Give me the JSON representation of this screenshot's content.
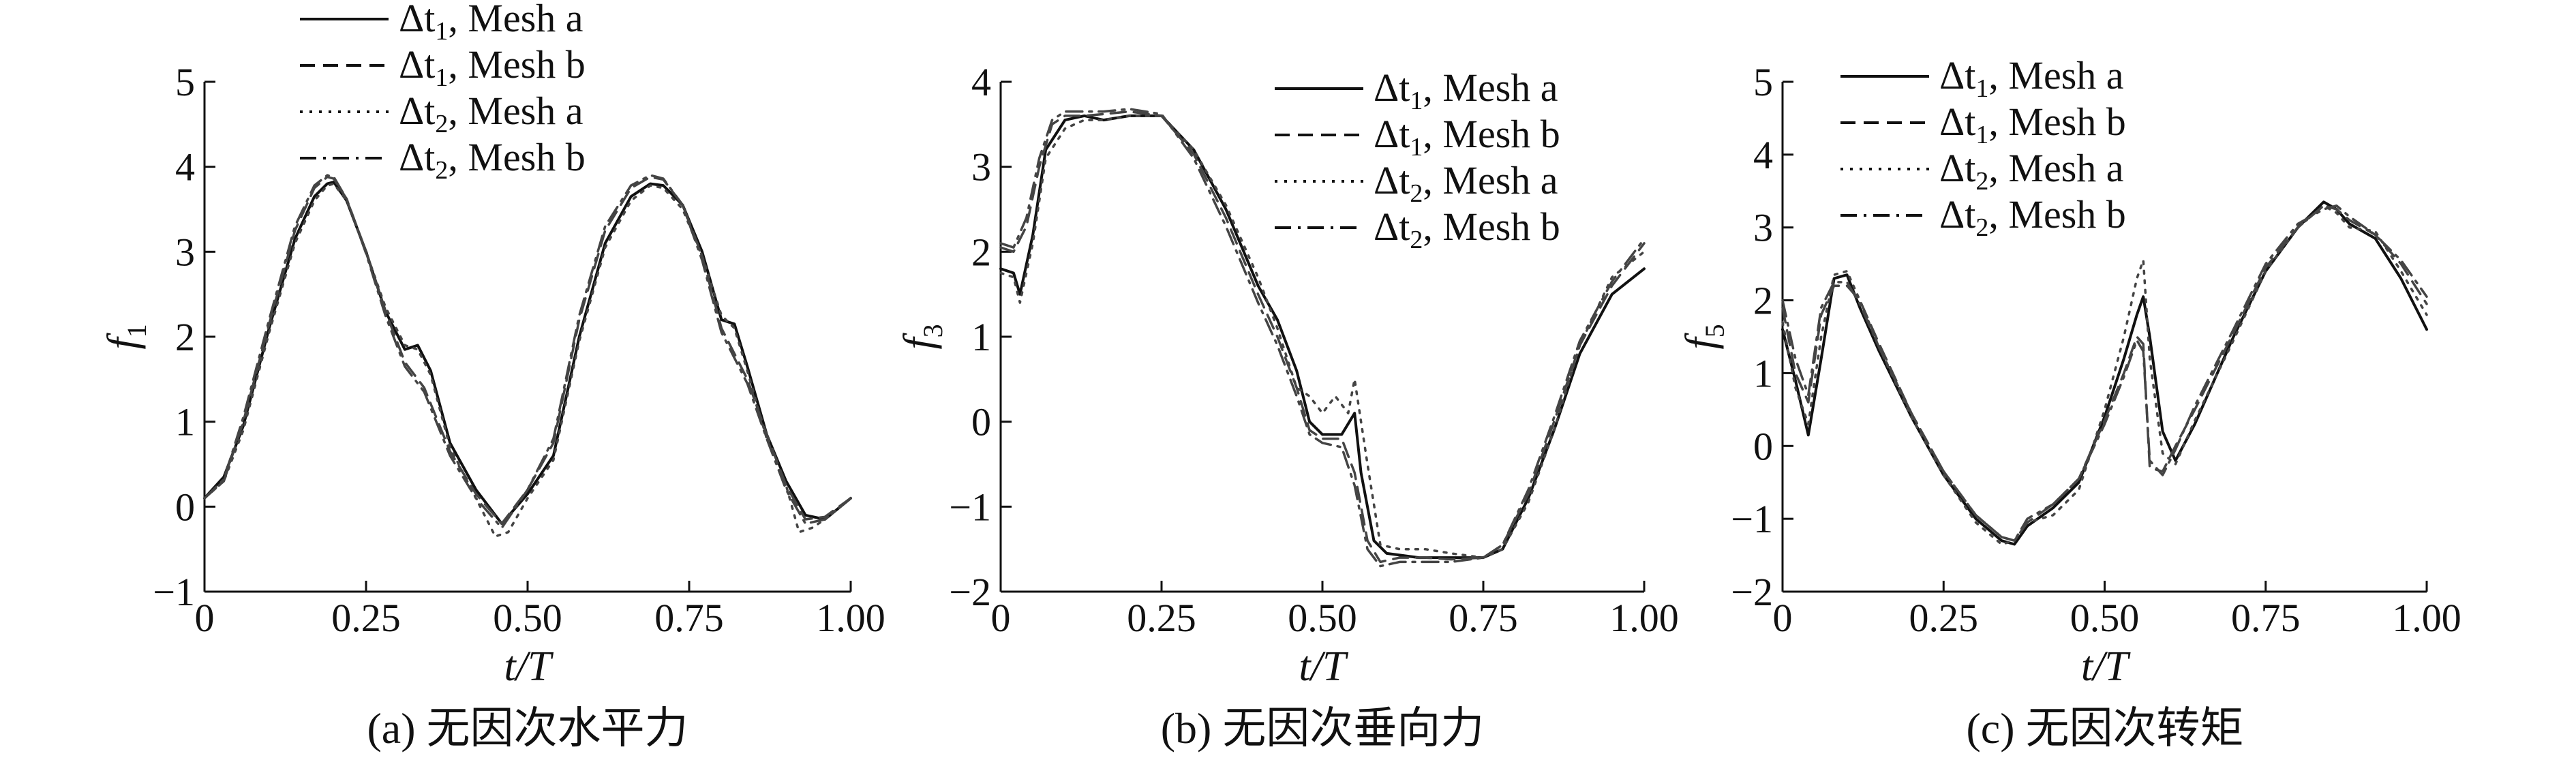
{
  "chart_data": [
    {
      "type": "line",
      "caption": "(a) 无因次水平力",
      "xlabel": "t/T",
      "ylabel": "f",
      "ylabel_sub": "1",
      "xlim": [
        0,
        1
      ],
      "ylim": [
        -1,
        5
      ],
      "xticks": [
        0,
        0.25,
        0.5,
        0.75,
        1.0
      ],
      "xtick_labels": [
        "0",
        "0.25",
        "0.50",
        "0.75",
        "1.00"
      ],
      "yticks": [
        -1,
        0,
        1,
        2,
        3,
        4,
        5
      ],
      "ytick_labels": [
        "−1",
        "0",
        "1",
        "2",
        "3",
        "4",
        "5"
      ],
      "legend_position": "top-left",
      "series": [
        {
          "name": "Δt₁, Mesh a",
          "legend_main": "Δt",
          "legend_sub": "1",
          "legend_rest": ", Mesh a",
          "style": "solid",
          "x": [
            0,
            0.03,
            0.06,
            0.1,
            0.14,
            0.17,
            0.19,
            0.2,
            0.22,
            0.25,
            0.28,
            0.31,
            0.33,
            0.35,
            0.38,
            0.42,
            0.46,
            0.5,
            0.54,
            0.58,
            0.62,
            0.66,
            0.69,
            0.71,
            0.74,
            0.77,
            0.8,
            0.82,
            0.84,
            0.87,
            0.9,
            0.93,
            0.96,
            1.0
          ],
          "y": [
            0.1,
            0.35,
            0.95,
            2.1,
            3.15,
            3.65,
            3.8,
            3.82,
            3.6,
            3.0,
            2.3,
            1.85,
            1.9,
            1.6,
            0.75,
            0.2,
            -0.2,
            0.15,
            0.6,
            2.0,
            3.1,
            3.65,
            3.8,
            3.78,
            3.55,
            3.0,
            2.2,
            2.15,
            1.65,
            0.85,
            0.3,
            -0.1,
            -0.15,
            0.1
          ]
        },
        {
          "name": "Δt₁, Mesh b",
          "legend_main": "Δt",
          "legend_sub": "1",
          "legend_rest": ", Mesh b",
          "style": "dashed",
          "x": [
            0,
            0.03,
            0.06,
            0.1,
            0.14,
            0.17,
            0.19,
            0.2,
            0.22,
            0.25,
            0.28,
            0.31,
            0.34,
            0.38,
            0.42,
            0.46,
            0.5,
            0.54,
            0.58,
            0.62,
            0.66,
            0.69,
            0.71,
            0.74,
            0.77,
            0.8,
            0.82,
            0.84,
            0.87,
            0.9,
            0.93,
            0.96,
            1.0
          ],
          "y": [
            0.1,
            0.3,
            1.0,
            2.15,
            3.25,
            3.75,
            3.88,
            3.86,
            3.62,
            3.0,
            2.3,
            1.7,
            1.4,
            0.65,
            0.15,
            -0.2,
            0.2,
            0.75,
            2.2,
            3.25,
            3.75,
            3.88,
            3.85,
            3.55,
            2.95,
            2.1,
            1.8,
            1.5,
            0.85,
            0.25,
            -0.15,
            -0.12,
            0.1
          ]
        },
        {
          "name": "Δt₂, Mesh a",
          "legend_main": "Δt",
          "legend_sub": "2",
          "legend_rest": ", Mesh a",
          "style": "dotted",
          "x": [
            0,
            0.03,
            0.06,
            0.1,
            0.14,
            0.17,
            0.19,
            0.2,
            0.22,
            0.25,
            0.28,
            0.31,
            0.33,
            0.35,
            0.38,
            0.42,
            0.45,
            0.47,
            0.5,
            0.54,
            0.58,
            0.62,
            0.66,
            0.69,
            0.71,
            0.74,
            0.77,
            0.8,
            0.82,
            0.84,
            0.87,
            0.9,
            0.92,
            0.94,
            0.96,
            1.0
          ],
          "y": [
            0.1,
            0.3,
            0.9,
            2.05,
            3.1,
            3.6,
            3.78,
            3.8,
            3.6,
            3.0,
            2.35,
            1.9,
            1.85,
            1.55,
            0.7,
            0.1,
            -0.35,
            -0.3,
            0.1,
            0.55,
            1.95,
            3.05,
            3.6,
            3.78,
            3.75,
            3.5,
            2.95,
            2.25,
            2.1,
            1.6,
            0.8,
            0.25,
            -0.3,
            -0.25,
            -0.15,
            0.1
          ]
        },
        {
          "name": "Δt₂, Mesh b",
          "legend_main": "Δt",
          "legend_sub": "2",
          "legend_rest": ", Mesh b",
          "style": "dashdot",
          "x": [
            0,
            0.03,
            0.06,
            0.1,
            0.14,
            0.17,
            0.19,
            0.2,
            0.22,
            0.25,
            0.28,
            0.31,
            0.34,
            0.38,
            0.42,
            0.46,
            0.5,
            0.54,
            0.58,
            0.62,
            0.66,
            0.69,
            0.71,
            0.74,
            0.77,
            0.8,
            0.82,
            0.84,
            0.87,
            0.9,
            0.93,
            0.96,
            1.0
          ],
          "y": [
            0.1,
            0.32,
            1.05,
            2.2,
            3.3,
            3.78,
            3.9,
            3.88,
            3.62,
            2.98,
            2.25,
            1.65,
            1.35,
            0.6,
            0.1,
            -0.25,
            0.2,
            0.8,
            2.25,
            3.3,
            3.78,
            3.9,
            3.86,
            3.55,
            2.9,
            2.05,
            1.75,
            1.45,
            0.8,
            0.2,
            -0.2,
            -0.15,
            0.1
          ]
        }
      ]
    },
    {
      "type": "line",
      "caption": "(b) 无因次垂向力",
      "xlabel": "t/T",
      "ylabel": "f",
      "ylabel_sub": "3",
      "xlim": [
        0,
        1
      ],
      "ylim": [
        -2,
        4
      ],
      "xticks": [
        0,
        0.25,
        0.5,
        0.75,
        1.0
      ],
      "xtick_labels": [
        "0",
        "0.25",
        "0.50",
        "0.75",
        "1.00"
      ],
      "yticks": [
        -2,
        -1,
        0,
        1,
        2,
        3,
        4
      ],
      "ytick_labels": [
        "−2",
        "−1",
        "0",
        "1",
        "2",
        "3",
        "4"
      ],
      "legend_position": "top-right",
      "series": [
        {
          "name": "Δt₁, Mesh a",
          "legend_main": "Δt",
          "legend_sub": "1",
          "legend_rest": ", Mesh a",
          "style": "solid",
          "x": [
            0,
            0.02,
            0.03,
            0.05,
            0.07,
            0.1,
            0.13,
            0.16,
            0.2,
            0.25,
            0.3,
            0.35,
            0.4,
            0.43,
            0.46,
            0.48,
            0.5,
            0.53,
            0.55,
            0.56,
            0.58,
            0.6,
            0.65,
            0.7,
            0.75,
            0.78,
            0.82,
            0.86,
            0.9,
            0.95,
            1.0
          ],
          "y": [
            1.8,
            1.75,
            1.5,
            2.2,
            3.2,
            3.55,
            3.6,
            3.55,
            3.6,
            3.6,
            3.2,
            2.5,
            1.6,
            1.2,
            0.6,
            0.0,
            -0.15,
            -0.15,
            0.1,
            -0.6,
            -1.4,
            -1.55,
            -1.6,
            -1.6,
            -1.6,
            -1.5,
            -0.9,
            -0.1,
            0.8,
            1.5,
            1.8
          ]
        },
        {
          "name": "Δt₁, Mesh b",
          "legend_main": "Δt",
          "legend_sub": "1",
          "legend_rest": ", Mesh b",
          "style": "dashed",
          "x": [
            0,
            0.02,
            0.04,
            0.06,
            0.08,
            0.1,
            0.13,
            0.16,
            0.2,
            0.25,
            0.3,
            0.35,
            0.4,
            0.43,
            0.46,
            0.48,
            0.5,
            0.53,
            0.55,
            0.57,
            0.59,
            0.62,
            0.66,
            0.7,
            0.75,
            0.78,
            0.82,
            0.86,
            0.9,
            0.95,
            1.0
          ],
          "y": [
            2.05,
            2.0,
            2.3,
            3.0,
            3.5,
            3.6,
            3.6,
            3.62,
            3.65,
            3.6,
            3.15,
            2.4,
            1.5,
            1.0,
            0.4,
            -0.1,
            -0.2,
            -0.2,
            -0.6,
            -1.4,
            -1.65,
            -1.6,
            -1.6,
            -1.62,
            -1.6,
            -1.45,
            -0.85,
            0.0,
            0.9,
            1.6,
            2.1
          ]
        },
        {
          "name": "Δt₂, Mesh a",
          "legend_main": "Δt",
          "legend_sub": "2",
          "legend_rest": ", Mesh a",
          "style": "dotted",
          "x": [
            0,
            0.02,
            0.03,
            0.05,
            0.07,
            0.1,
            0.13,
            0.16,
            0.2,
            0.25,
            0.3,
            0.35,
            0.4,
            0.43,
            0.46,
            0.48,
            0.5,
            0.52,
            0.54,
            0.55,
            0.57,
            0.59,
            0.62,
            0.66,
            0.7,
            0.75,
            0.78,
            0.82,
            0.86,
            0.9,
            0.95,
            1.0
          ],
          "y": [
            1.75,
            1.7,
            1.4,
            2.1,
            3.1,
            3.45,
            3.55,
            3.55,
            3.6,
            3.6,
            3.2,
            2.55,
            1.7,
            1.1,
            0.4,
            0.3,
            0.1,
            0.3,
            0.1,
            0.5,
            -0.5,
            -1.45,
            -1.5,
            -1.5,
            -1.55,
            -1.6,
            -1.5,
            -0.95,
            -0.1,
            0.9,
            1.7,
            2.0
          ]
        },
        {
          "name": "Δt₂, Mesh b",
          "legend_main": "Δt",
          "legend_sub": "2",
          "legend_rest": ", Mesh b",
          "style": "dashdot",
          "x": [
            0,
            0.02,
            0.04,
            0.06,
            0.08,
            0.1,
            0.13,
            0.16,
            0.2,
            0.25,
            0.3,
            0.35,
            0.4,
            0.43,
            0.46,
            0.48,
            0.5,
            0.53,
            0.55,
            0.57,
            0.59,
            0.62,
            0.66,
            0.7,
            0.75,
            0.78,
            0.82,
            0.86,
            0.9,
            0.95,
            1.0
          ],
          "y": [
            2.1,
            2.05,
            2.4,
            3.1,
            3.55,
            3.65,
            3.65,
            3.65,
            3.68,
            3.62,
            3.1,
            2.3,
            1.4,
            0.9,
            0.3,
            -0.15,
            -0.25,
            -0.3,
            -0.75,
            -1.5,
            -1.7,
            -1.65,
            -1.65,
            -1.65,
            -1.6,
            -1.45,
            -0.8,
            0.05,
            0.95,
            1.65,
            2.15
          ]
        }
      ]
    },
    {
      "type": "line",
      "caption": "(c) 无因次转矩",
      "xlabel": "t/T",
      "ylabel": "f",
      "ylabel_sub": "5",
      "xlim": [
        0,
        1
      ],
      "ylim": [
        -2,
        5
      ],
      "xticks": [
        0,
        0.25,
        0.5,
        0.75,
        1.0
      ],
      "xtick_labels": [
        "0",
        "0.25",
        "0.50",
        "0.75",
        "1.00"
      ],
      "yticks": [
        -2,
        -1,
        0,
        1,
        2,
        3,
        4,
        5
      ],
      "ytick_labels": [
        "−2",
        "−1",
        "0",
        "1",
        "2",
        "3",
        "4",
        "5"
      ],
      "legend_position": "top-center",
      "series": [
        {
          "name": "Δt₁, Mesh a",
          "legend_main": "Δt",
          "legend_sub": "1",
          "legend_rest": ", Mesh a",
          "style": "solid",
          "x": [
            0,
            0.02,
            0.04,
            0.06,
            0.08,
            0.1,
            0.12,
            0.15,
            0.2,
            0.25,
            0.3,
            0.34,
            0.36,
            0.38,
            0.42,
            0.46,
            0.5,
            0.53,
            0.55,
            0.56,
            0.57,
            0.59,
            0.61,
            0.64,
            0.7,
            0.75,
            0.8,
            0.84,
            0.86,
            0.88,
            0.92,
            0.96,
            1.0
          ],
          "y": [
            1.6,
            0.9,
            0.15,
            1.2,
            2.3,
            2.35,
            1.9,
            1.3,
            0.4,
            -0.4,
            -1.0,
            -1.3,
            -1.35,
            -1.1,
            -0.85,
            -0.5,
            0.4,
            1.2,
            1.8,
            2.05,
            1.5,
            0.2,
            -0.2,
            0.3,
            1.5,
            2.4,
            3.0,
            3.35,
            3.25,
            3.05,
            2.85,
            2.3,
            1.6
          ]
        },
        {
          "name": "Δt₁, Mesh b",
          "legend_main": "Δt",
          "legend_sub": "1",
          "legend_rest": ", Mesh b",
          "style": "dashed",
          "x": [
            0,
            0.02,
            0.04,
            0.06,
            0.08,
            0.1,
            0.12,
            0.15,
            0.2,
            0.25,
            0.3,
            0.34,
            0.36,
            0.38,
            0.42,
            0.46,
            0.5,
            0.53,
            0.55,
            0.56,
            0.57,
            0.59,
            0.61,
            0.64,
            0.7,
            0.75,
            0.8,
            0.84,
            0.86,
            0.88,
            0.92,
            0.96,
            1.0
          ],
          "y": [
            1.9,
            1.0,
            0.6,
            1.8,
            2.2,
            2.2,
            2.0,
            1.4,
            0.45,
            -0.35,
            -0.95,
            -1.25,
            -1.3,
            -1.05,
            -0.8,
            -0.45,
            0.35,
            1.0,
            1.5,
            1.4,
            -0.3,
            -0.35,
            0.0,
            0.5,
            1.55,
            2.45,
            3.0,
            3.3,
            3.25,
            3.1,
            2.9,
            2.5,
            1.95
          ]
        },
        {
          "name": "Δt₂, Mesh a",
          "legend_main": "Δt",
          "legend_sub": "2",
          "legend_rest": ", Mesh a",
          "style": "dotted",
          "x": [
            0,
            0.02,
            0.04,
            0.06,
            0.08,
            0.1,
            0.12,
            0.15,
            0.2,
            0.25,
            0.3,
            0.34,
            0.36,
            0.38,
            0.42,
            0.46,
            0.5,
            0.53,
            0.55,
            0.56,
            0.57,
            0.59,
            0.61,
            0.64,
            0.7,
            0.75,
            0.8,
            0.84,
            0.86,
            0.88,
            0.92,
            0.96,
            1.0
          ],
          "y": [
            1.7,
            0.8,
            0.3,
            1.5,
            2.35,
            2.4,
            2.0,
            1.35,
            0.4,
            -0.4,
            -1.05,
            -1.35,
            -1.3,
            -1.05,
            -0.95,
            -0.6,
            0.5,
            1.5,
            2.3,
            2.55,
            1.2,
            -0.1,
            -0.25,
            0.35,
            1.45,
            2.4,
            3.0,
            3.3,
            3.2,
            3.0,
            2.95,
            2.4,
            1.8
          ]
        },
        {
          "name": "Δt₂, Mesh b",
          "legend_main": "Δt",
          "legend_sub": "2",
          "legend_rest": ", Mesh b",
          "style": "dashdot",
          "x": [
            0,
            0.02,
            0.04,
            0.06,
            0.08,
            0.1,
            0.12,
            0.15,
            0.2,
            0.25,
            0.3,
            0.34,
            0.36,
            0.38,
            0.42,
            0.46,
            0.5,
            0.53,
            0.55,
            0.56,
            0.57,
            0.59,
            0.61,
            0.64,
            0.7,
            0.75,
            0.8,
            0.84,
            0.86,
            0.88,
            0.92,
            0.96,
            1.0
          ],
          "y": [
            2.0,
            1.2,
            0.7,
            1.9,
            2.25,
            2.25,
            1.95,
            1.35,
            0.45,
            -0.35,
            -0.95,
            -1.25,
            -1.3,
            -1.0,
            -0.8,
            -0.45,
            0.3,
            0.95,
            1.45,
            1.3,
            -0.2,
            -0.4,
            -0.05,
            0.55,
            1.6,
            2.5,
            3.05,
            3.25,
            3.3,
            3.15,
            2.9,
            2.55,
            2.05
          ]
        }
      ]
    }
  ]
}
